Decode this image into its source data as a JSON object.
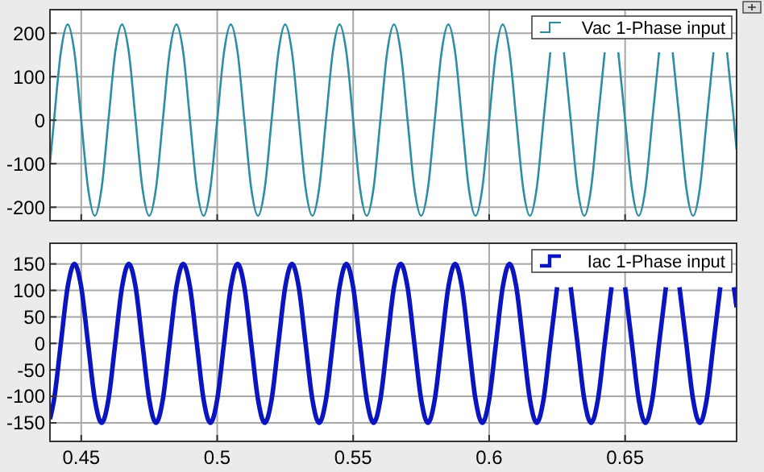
{
  "chart_data": [
    {
      "type": "line",
      "x": [
        0.4385,
        0.44,
        0.4425,
        0.445,
        0.4475,
        0.45,
        0.4525,
        0.455,
        0.4575,
        0.46,
        0.4625,
        0.465,
        0.4675,
        0.47,
        0.4725,
        0.475,
        0.4775,
        0.48,
        0.4825,
        0.485,
        0.4875,
        0.49,
        0.4925,
        0.495,
        0.4975,
        0.5,
        0.5025,
        0.505,
        0.5075,
        0.51,
        0.5125,
        0.515,
        0.5175,
        0.52,
        0.5225,
        0.525,
        0.5275,
        0.53,
        0.5325,
        0.535,
        0.5375,
        0.54,
        0.5425,
        0.545,
        0.5475,
        0.55,
        0.5525,
        0.555,
        0.5575,
        0.56,
        0.5625,
        0.565,
        0.5675,
        0.57,
        0.5725,
        0.575,
        0.5775,
        0.58,
        0.5825,
        0.585,
        0.5875,
        0.59,
        0.5925,
        0.595,
        0.5975,
        0.6,
        0.6025,
        0.605,
        0.6075,
        0.61,
        0.6125,
        0.615,
        0.6175,
        0.62,
        0.6225,
        0.625,
        0.6275,
        0.63,
        0.6325,
        0.635,
        0.6375,
        0.64,
        0.6425,
        0.645,
        0.6475,
        0.65,
        0.6525,
        0.655,
        0.6575,
        0.66,
        0.6625,
        0.665,
        0.6675,
        0.67,
        0.6725,
        0.675,
        0.6775,
        0.68,
        0.6825,
        0.685,
        0.6875,
        0.69,
        0.691
      ],
      "series": [
        {
          "name": "Vac 1-Phase input",
          "color": "#2b8ea3",
          "values": [
            -100,
            0,
            156,
            220,
            156,
            0,
            -156,
            -220,
            -156,
            0,
            156,
            220,
            156,
            0,
            -156,
            -220,
            -156,
            0,
            156,
            220,
            156,
            0,
            -156,
            -220,
            -156,
            0,
            156,
            220,
            156,
            0,
            -156,
            -220,
            -156,
            0,
            156,
            220,
            156,
            0,
            -156,
            -220,
            -156,
            0,
            156,
            220,
            156,
            0,
            -156,
            -220,
            -156,
            0,
            156,
            220,
            156,
            0,
            -156,
            -220,
            -156,
            0,
            156,
            220,
            156,
            0,
            -156,
            -220,
            -156,
            0,
            156,
            220,
            156,
            0,
            -156,
            -220,
            -156,
            0,
            156,
            null,
            156,
            0,
            -156,
            -220,
            -156,
            0,
            156,
            null,
            156,
            0,
            -156,
            -220,
            -156,
            0,
            156,
            null,
            156,
            0,
            -156,
            -220,
            -156,
            0,
            156,
            null,
            156,
            0,
            -68
          ]
        }
      ],
      "xlim": [
        0.4385,
        0.691
      ],
      "xticks": [
        0.45,
        0.5,
        0.55,
        0.6,
        0.65
      ],
      "ylim": [
        -231,
        254
      ],
      "yticks": [
        -200,
        -100,
        0,
        100,
        200
      ],
      "tick_labels": "y",
      "grid": true,
      "legend": "top right"
    },
    {
      "type": "line",
      "x": [
        0.4385,
        0.44,
        0.4425,
        0.445,
        0.4475,
        0.45,
        0.4525,
        0.455,
        0.4575,
        0.46,
        0.4625,
        0.465,
        0.4675,
        0.47,
        0.4725,
        0.475,
        0.4775,
        0.48,
        0.4825,
        0.485,
        0.4875,
        0.49,
        0.4925,
        0.495,
        0.4975,
        0.5,
        0.5025,
        0.505,
        0.5075,
        0.51,
        0.5125,
        0.515,
        0.5175,
        0.52,
        0.5225,
        0.525,
        0.5275,
        0.53,
        0.5325,
        0.535,
        0.5375,
        0.54,
        0.5425,
        0.545,
        0.5475,
        0.55,
        0.5525,
        0.555,
        0.5575,
        0.56,
        0.5625,
        0.565,
        0.5675,
        0.57,
        0.5725,
        0.575,
        0.5775,
        0.58,
        0.5825,
        0.585,
        0.5875,
        0.59,
        0.5925,
        0.595,
        0.5975,
        0.6,
        0.6025,
        0.605,
        0.6075,
        0.61,
        0.6125,
        0.615,
        0.6175,
        0.62,
        0.6225,
        0.625,
        0.6275,
        0.63,
        0.6325,
        0.635,
        0.6375,
        0.64,
        0.6425,
        0.645,
        0.6475,
        0.65,
        0.6525,
        0.655,
        0.6575,
        0.66,
        0.6625,
        0.665,
        0.6675,
        0.67,
        0.6725,
        0.675,
        0.6775,
        0.68,
        0.6825,
        0.685,
        0.6875,
        0.69,
        0.691
      ],
      "series": [
        {
          "name": "Iac 1-Phase input",
          "color": "#0a14c0",
          "values": [
            -143,
            -106,
            0,
            106,
            150,
            106,
            0,
            -106,
            -150,
            -106,
            0,
            106,
            150,
            106,
            0,
            -106,
            -150,
            -106,
            0,
            106,
            150,
            106,
            0,
            -106,
            -150,
            -106,
            0,
            106,
            150,
            106,
            0,
            -106,
            -150,
            -106,
            0,
            106,
            150,
            106,
            0,
            -106,
            -150,
            -106,
            0,
            106,
            150,
            106,
            0,
            -106,
            -150,
            -106,
            0,
            106,
            150,
            106,
            0,
            -106,
            -150,
            -106,
            0,
            106,
            150,
            106,
            0,
            -106,
            -150,
            -106,
            0,
            106,
            150,
            106,
            0,
            -106,
            -150,
            -106,
            0,
            106,
            null,
            106,
            0,
            -106,
            -150,
            -106,
            0,
            106,
            null,
            106,
            0,
            -106,
            -150,
            -106,
            0,
            106,
            null,
            106,
            0,
            -106,
            -150,
            -106,
            0,
            106,
            null,
            106,
            68
          ]
        }
      ],
      "xlim": [
        0.4385,
        0.691
      ],
      "xticks": [
        0.45,
        0.5,
        0.55,
        0.6,
        0.65
      ],
      "ylim": [
        -185,
        189
      ],
      "yticks": [
        -150,
        -100,
        -50,
        0,
        50,
        100,
        150
      ],
      "grid": true,
      "legend": "top right"
    }
  ]
}
